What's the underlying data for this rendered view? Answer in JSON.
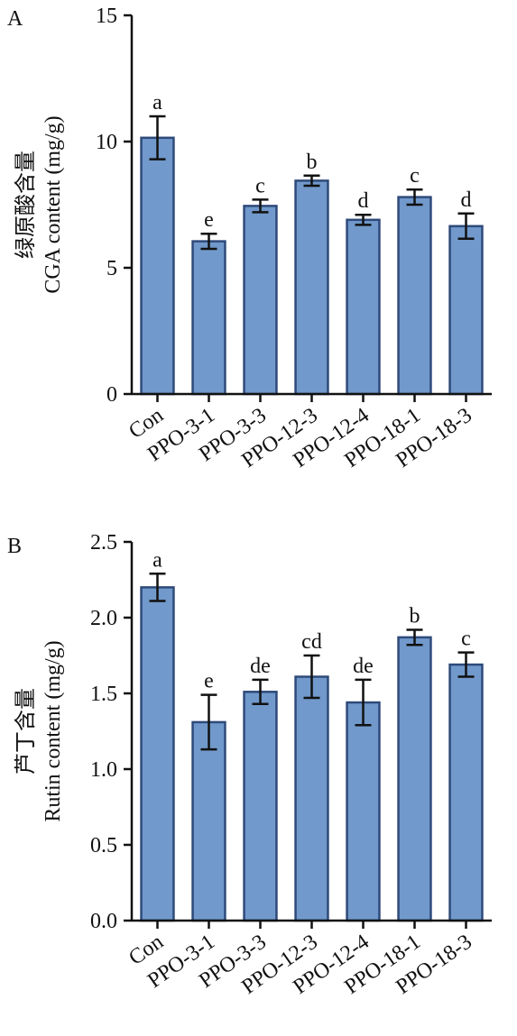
{
  "chart_data": [
    {
      "type": "bar",
      "panel": "A",
      "ylabel_cn": "绿原酸含量",
      "ylabel": "CGA content (mg/g)",
      "ylim": [
        0,
        15
      ],
      "yticks": [
        "0",
        "5",
        "10",
        "15"
      ],
      "categories": [
        "Con",
        "PPO-3-1",
        "PPO-3-3",
        "PPO-12-3",
        "PPO-12-4",
        "PPO-18-1",
        "PPO-18-3"
      ],
      "values": [
        10.15,
        6.05,
        7.45,
        8.45,
        6.9,
        7.8,
        6.65
      ],
      "errors": [
        0.85,
        0.3,
        0.25,
        0.2,
        0.2,
        0.3,
        0.5
      ],
      "significance": [
        "a",
        "e",
        "c",
        "b",
        "d",
        "c",
        "d"
      ],
      "bar_color": "#7199cb",
      "grid": false
    },
    {
      "type": "bar",
      "panel": "B",
      "ylabel_cn": "芦丁含量",
      "ylabel": "Rutin content (mg/g)",
      "ylim": [
        0,
        2.5
      ],
      "yticks": [
        "0.0",
        "0.5",
        "1.0",
        "1.5",
        "2.0",
        "2.5"
      ],
      "categories": [
        "Con",
        "PPO-3-1",
        "PPO-3-3",
        "PPO-12-3",
        "PPO-12-4",
        "PPO-18-1",
        "PPO-18-3"
      ],
      "values": [
        2.2,
        1.31,
        1.51,
        1.61,
        1.44,
        1.87,
        1.69
      ],
      "errors": [
        0.09,
        0.18,
        0.08,
        0.14,
        0.15,
        0.05,
        0.08
      ],
      "significance": [
        "a",
        "e",
        "de",
        "cd",
        "de",
        "b",
        "c"
      ],
      "bar_color": "#7199cb",
      "grid": false
    }
  ]
}
